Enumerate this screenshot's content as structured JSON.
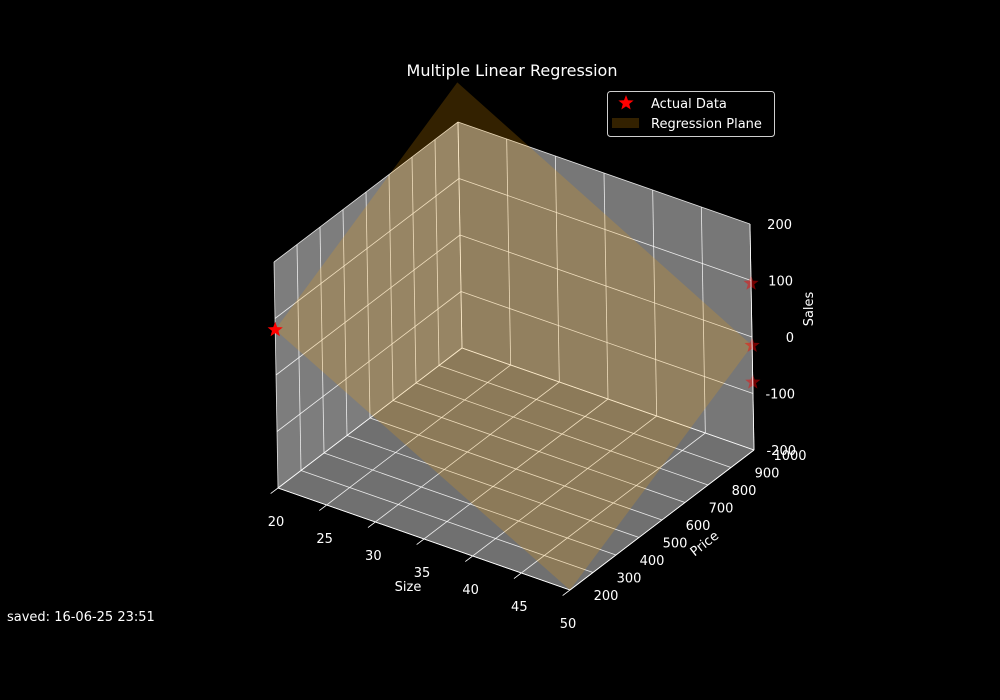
{
  "chart_data": {
    "type": "scatter",
    "projection": "3d",
    "title": "Multiple Linear Regression",
    "xlabel": "Size",
    "ylabel": "Price",
    "zlabel": "Sales",
    "xlim": [
      20,
      50
    ],
    "ylim": [
      200,
      1000
    ],
    "zlim": [
      -200,
      200
    ],
    "xticks": [
      "20",
      "25",
      "30",
      "35",
      "40",
      "45",
      "50"
    ],
    "yticks": [
      "200",
      "300",
      "400",
      "500",
      "600",
      "700",
      "800",
      "900",
      "1000"
    ],
    "zticks": [
      "-200",
      "-100",
      "0",
      "100",
      "200"
    ],
    "grid": true,
    "legend_position": "top-right",
    "series": [
      {
        "name": "Actual Data",
        "kind": "scatter",
        "marker": "star",
        "color": "#ff0000",
        "points": [
          {
            "x": 20,
            "y": 200,
            "z": 80
          },
          {
            "x": 50,
            "y": 1000,
            "z": -80
          },
          {
            "x": 50,
            "y": 1000,
            "z": -15
          },
          {
            "x": 50,
            "y": 1000,
            "z": 95
          }
        ]
      },
      {
        "name": "Regression Plane",
        "kind": "surface",
        "color": "#ffa500",
        "opacity": 0.2,
        "corners": [
          {
            "x": 20,
            "y": 200,
            "z": 80
          },
          {
            "x": 50,
            "y": 200,
            "z": -200
          },
          {
            "x": 50,
            "y": 1000,
            "z": -15
          },
          {
            "x": 20,
            "y": 1000,
            "z": 270
          }
        ]
      }
    ]
  },
  "colors": {
    "background": "#000000",
    "pane": "#808080",
    "grid": "#ffffff",
    "text": "#ffffff",
    "marker": "#ff0000",
    "plane": "#ffa500"
  },
  "footer": {
    "saved_text": "saved: 16-06-25 23:51"
  }
}
